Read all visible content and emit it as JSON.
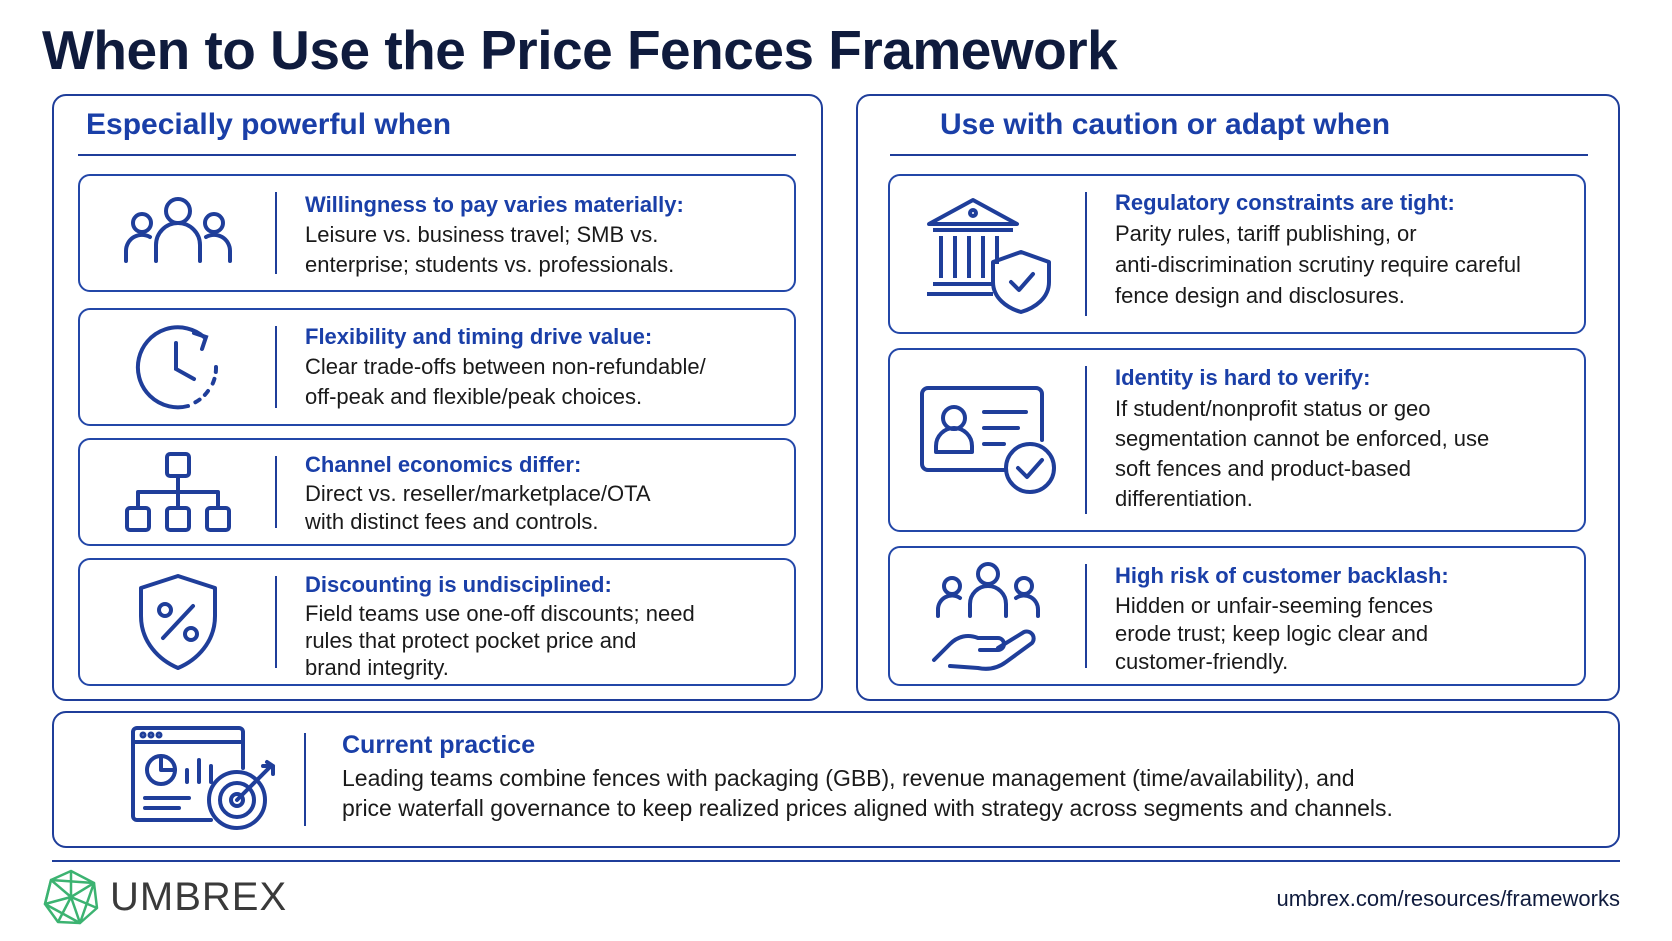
{
  "title": "When to Use the Price Fences Framework",
  "left_panel": {
    "heading": "Especially powerful when",
    "cards": [
      {
        "icon": "people-group-icon",
        "title": "Willingness to pay varies materially:",
        "lines": [
          "Leisure vs. business travel; SMB vs.",
          "enterprise; students vs. professionals."
        ]
      },
      {
        "icon": "clock-refresh-icon",
        "title": "Flexibility and timing drive value:",
        "lines": [
          "Clear trade-offs between non-refundable/",
          "off-peak and flexible/peak choices."
        ]
      },
      {
        "icon": "org-chart-icon",
        "title": "Channel economics differ:",
        "lines": [
          "Direct vs. reseller/marketplace/OTA",
          "with distinct fees and controls."
        ]
      },
      {
        "icon": "percent-shield-icon",
        "title": "Discounting is undisciplined:",
        "lines": [
          "Field teams use one-off discounts; need",
          "rules that protect pocket price and",
          "brand integrity."
        ]
      }
    ]
  },
  "right_panel": {
    "heading": "Use with caution or adapt when",
    "cards": [
      {
        "icon": "bank-shield-icon",
        "title": "Regulatory constraints are tight:",
        "lines": [
          "Parity rules, tariff publishing, or",
          "anti-discrimination scrutiny require careful",
          "fence design and disclosures."
        ]
      },
      {
        "icon": "id-card-check-icon",
        "title": "Identity is hard to verify:",
        "lines": [
          "If student/nonprofit status or geo",
          "segmentation cannot be enforced, use",
          "soft fences and product-based",
          "differentiation."
        ]
      },
      {
        "icon": "hand-people-icon",
        "title": "High risk of customer backlash:",
        "lines": [
          "Hidden or unfair-seeming fences",
          "erode trust; keep logic clear and",
          "customer-friendly."
        ]
      }
    ]
  },
  "practice": {
    "icon": "dashboard-target-icon",
    "title": "Current practice",
    "lines": [
      "Leading teams combine fences with packaging (GBB), revenue management (time/availability), and",
      "price waterfall governance to keep realized prices aligned with strategy across segments and channels."
    ]
  },
  "footer": {
    "logo_text": "UMBREX",
    "url": "umbrex.com/resources/frameworks"
  },
  "colors": {
    "accent": "#1a3fa8",
    "border": "#1f3e9a",
    "title": "#0f1b3d",
    "logo_green": "#3cb371"
  }
}
